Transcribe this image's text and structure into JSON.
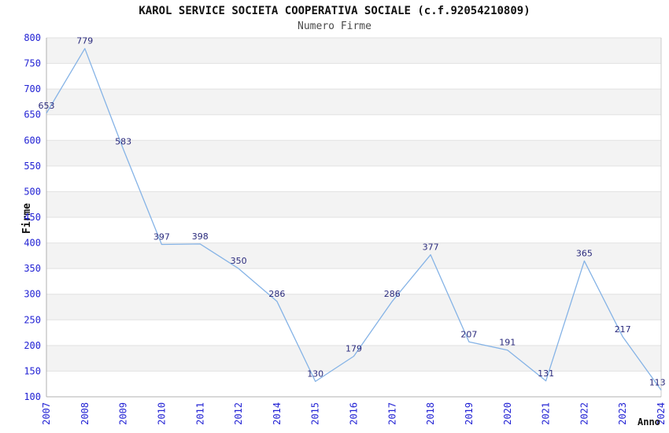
{
  "chart_data": {
    "type": "line",
    "title": "KAROL SERVICE SOCIETA COOPERATIVA SOCIALE (c.f.92054210809)",
    "subtitle": "Numero Firme",
    "xlabel": "Anno",
    "ylabel": "Firme",
    "categories": [
      "2007",
      "2008",
      "2009",
      "2010",
      "2011",
      "2012",
      "2014",
      "2015",
      "2016",
      "2017",
      "2018",
      "2019",
      "2020",
      "2021",
      "2022",
      "2023",
      "2024"
    ],
    "values": [
      653,
      779,
      583,
      397,
      398,
      350,
      286,
      130,
      179,
      286,
      377,
      207,
      191,
      131,
      365,
      217,
      113
    ],
    "ylim": [
      100,
      800
    ],
    "ytick_step": 50,
    "grid": true,
    "legend": false,
    "alternating_bands": true,
    "colors": {
      "line": "#85b3e6",
      "data_label": "#2b2b7d",
      "tick_label": "#2222d4",
      "band_fill": "#f3f3f3",
      "gridline": "#e2e2e2",
      "axis_line": "#b0b0b0",
      "plot_border": "#cccccc",
      "title": "#111111",
      "subtitle": "#4a4a4a"
    }
  }
}
